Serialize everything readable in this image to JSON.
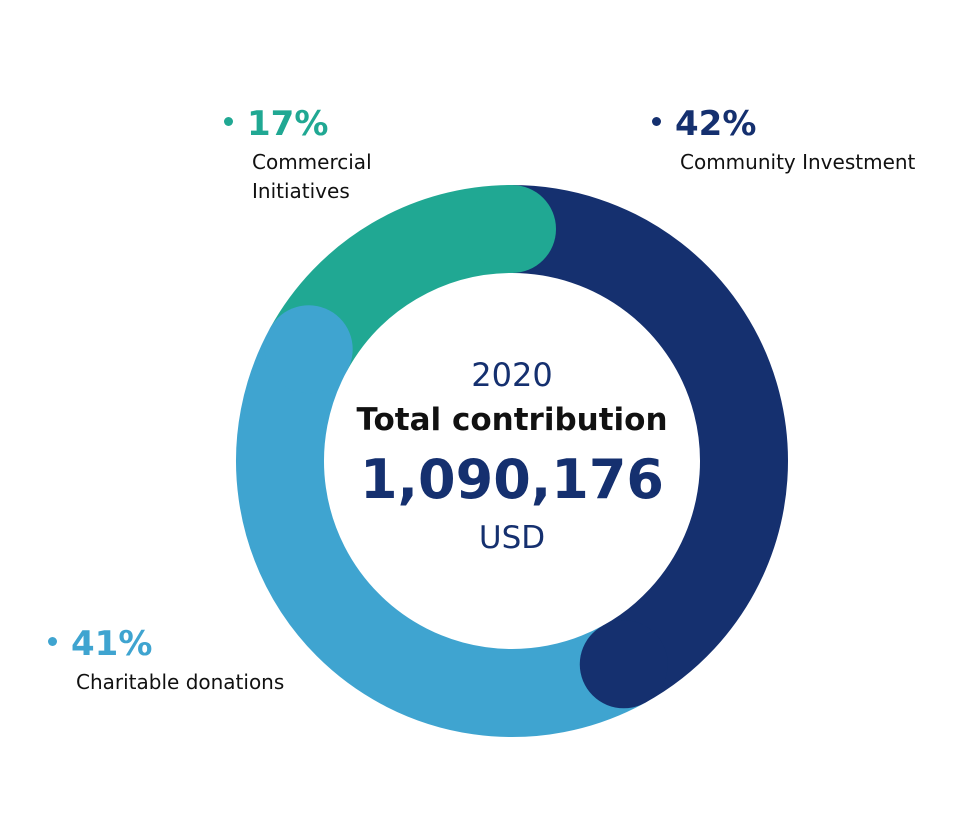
{
  "chart_data": {
    "type": "pie",
    "categories": [
      "Community Investment",
      "Charitable donations",
      "Commercial Initiatives"
    ],
    "values": [
      42,
      41,
      17
    ],
    "value_labels": [
      "42%",
      "41%",
      "17%"
    ],
    "colors": [
      "#15306f",
      "#3fa4d0",
      "#20a893"
    ],
    "center_text": {
      "year": "2020",
      "title": "Total contribution",
      "total": "1,090,176",
      "unit": "USD"
    }
  }
}
